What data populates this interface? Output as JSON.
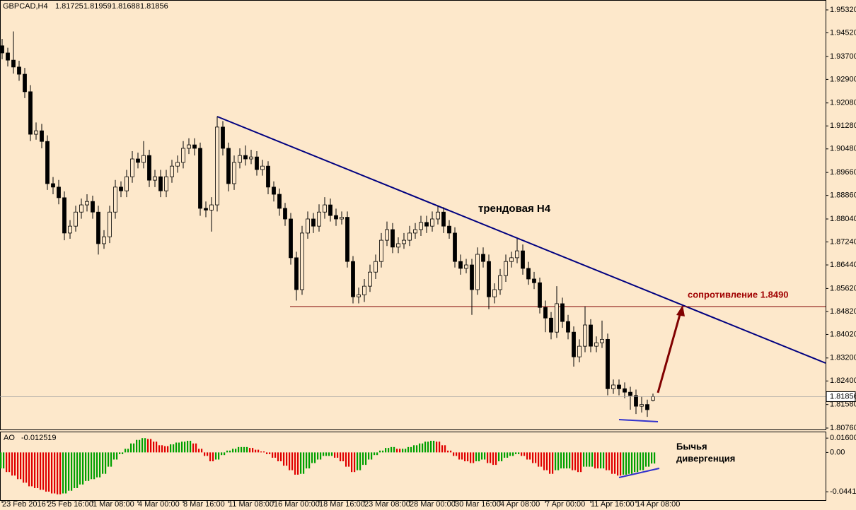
{
  "chart_data": [
    {
      "type": "candlestick",
      "symbol": "GBPCAD,H4",
      "up_color": "#fde8cb",
      "down_color": "#000000",
      "line_color": "#000000",
      "last_price_color": "#a0a0a0",
      "annotations": [
        "трендовая H4",
        "сопротивление 1.8490"
      ],
      "categories": [
        "23 Feb 2016",
        null,
        null,
        null,
        null,
        null,
        null,
        null,
        "25 Feb 16:00",
        null,
        null,
        null,
        null,
        null,
        null,
        null,
        "1 Mar 08:00",
        null,
        null,
        null,
        null,
        null,
        null,
        null,
        "4 Mar 00:00",
        null,
        null,
        null,
        null,
        null,
        null,
        null,
        "8 Mar 16:00",
        null,
        null,
        null,
        null,
        null,
        null,
        null,
        "11 Mar 08:00",
        null,
        null,
        null,
        null,
        null,
        null,
        null,
        "16 Mar 00:00",
        null,
        null,
        null,
        null,
        null,
        null,
        null,
        "18 Mar 16:00",
        null,
        null,
        null,
        null,
        null,
        null,
        null,
        "23 Mar 08:00",
        null,
        null,
        null,
        null,
        null,
        null,
        null,
        "28 Mar 00:00",
        null,
        null,
        null,
        null,
        null,
        null,
        null,
        "30 Mar 16:00",
        null,
        null,
        null,
        null,
        null,
        null,
        null,
        "4 Apr 08:00",
        null,
        null,
        null,
        null,
        null,
        null,
        null,
        "7 Apr 00:00",
        null,
        null,
        null,
        null,
        null,
        null,
        null,
        "11 Apr 16:00",
        null,
        null,
        null,
        null,
        null,
        null,
        null,
        "14 Apr 08:00",
        null,
        null,
        null
      ],
      "ohlc": [
        [
          1.9407,
          1.9431,
          1.936,
          1.9382
        ],
        [
          1.9382,
          1.94,
          1.9335,
          1.9357
        ],
        [
          1.9357,
          1.9457,
          1.931,
          1.9333
        ],
        [
          1.9333,
          1.9355,
          1.9285,
          1.9308
        ],
        [
          1.9308,
          1.933,
          1.9225,
          1.9247
        ],
        [
          1.9247,
          1.927,
          1.9075,
          1.9099
        ],
        [
          1.9099,
          1.914,
          1.908,
          1.9111
        ],
        [
          1.9111,
          1.9135,
          1.905,
          1.9074
        ],
        [
          1.9074,
          1.9095,
          1.8905,
          1.8927
        ],
        [
          1.8927,
          1.895,
          1.889,
          1.8915
        ],
        [
          1.8915,
          1.894,
          1.8855,
          1.8878
        ],
        [
          1.8878,
          1.89,
          1.873,
          1.8755
        ],
        [
          1.8755,
          1.88,
          1.8735,
          1.8779
        ],
        [
          1.8779,
          1.885,
          1.876,
          1.8828
        ],
        [
          1.8828,
          1.8875,
          1.8805,
          1.8853
        ],
        [
          1.8853,
          1.889,
          1.883,
          1.8865
        ],
        [
          1.8865,
          1.8885,
          1.8805,
          1.8828
        ],
        [
          1.8828,
          1.885,
          1.868,
          1.8718
        ],
        [
          1.8718,
          1.8765,
          1.87,
          1.8742
        ],
        [
          1.8742,
          1.885,
          1.872,
          1.8828
        ],
        [
          1.8828,
          1.894,
          1.8805,
          1.8915
        ],
        [
          1.8915,
          1.8935,
          1.888,
          1.8902
        ],
        [
          1.8902,
          1.8975,
          1.888,
          1.8951
        ],
        [
          1.8951,
          1.904,
          1.893,
          1.9013
        ],
        [
          1.9013,
          1.9035,
          1.898,
          1.9001
        ],
        [
          1.9001,
          1.9075,
          1.898,
          1.9025
        ],
        [
          1.9025,
          1.9045,
          1.8915,
          1.8939
        ],
        [
          1.8939,
          1.8975,
          1.8915,
          1.8951
        ],
        [
          1.8951,
          1.8975,
          1.888,
          1.8902
        ],
        [
          1.8902,
          1.8975,
          1.888,
          1.8951
        ],
        [
          1.8951,
          1.901,
          1.893,
          1.8988
        ],
        [
          1.8988,
          1.9025,
          1.8965,
          1.9001
        ],
        [
          1.9001,
          1.9075,
          1.898,
          1.905
        ],
        [
          1.905,
          1.9085,
          1.903,
          1.9062
        ],
        [
          1.9062,
          1.9085,
          1.9025,
          1.905
        ],
        [
          1.905,
          1.907,
          1.8815,
          1.8841
        ],
        [
          1.8841,
          1.8865,
          1.881,
          1.8835
        ],
        [
          1.8835,
          1.888,
          1.876,
          1.8853
        ],
        [
          1.8853,
          1.9161,
          1.883,
          1.9124
        ],
        [
          1.9124,
          1.9145,
          1.9025,
          1.905
        ],
        [
          1.905,
          1.907,
          1.89,
          1.8927
        ],
        [
          1.8927,
          1.9025,
          1.8905,
          1.9001
        ],
        [
          1.9001,
          1.905,
          1.898,
          1.9025
        ],
        [
          1.9025,
          1.906,
          1.899,
          1.9013
        ],
        [
          1.9013,
          1.9045,
          1.8995,
          1.902
        ],
        [
          1.902,
          1.904,
          1.8955,
          1.8976
        ],
        [
          1.8976,
          1.901,
          1.8955,
          1.8988
        ],
        [
          1.8988,
          1.9005,
          1.889,
          1.8915
        ],
        [
          1.8915,
          1.8935,
          1.8865,
          1.889
        ],
        [
          1.889,
          1.891,
          1.8815,
          1.8841
        ],
        [
          1.8841,
          1.886,
          1.878,
          1.8804
        ],
        [
          1.8804,
          1.8825,
          1.8645,
          1.8669
        ],
        [
          1.8669,
          1.869,
          1.852,
          1.8558
        ],
        [
          1.8558,
          1.878,
          1.854,
          1.8755
        ],
        [
          1.8755,
          1.883,
          1.8735,
          1.8804
        ],
        [
          1.8804,
          1.8825,
          1.8755,
          1.8779
        ],
        [
          1.8779,
          1.8855,
          1.876,
          1.8828
        ],
        [
          1.8828,
          1.888,
          1.8805,
          1.8853
        ],
        [
          1.8853,
          1.8875,
          1.8795,
          1.8816
        ],
        [
          1.8816,
          1.884,
          1.878,
          1.8804
        ],
        [
          1.8804,
          1.883,
          1.8785,
          1.881
        ],
        [
          1.881,
          1.883,
          1.8635,
          1.8656
        ],
        [
          1.8656,
          1.8675,
          1.851,
          1.8533
        ],
        [
          1.8533,
          1.8565,
          1.851,
          1.854
        ],
        [
          1.854,
          1.8595,
          1.8515,
          1.857
        ],
        [
          1.857,
          1.8645,
          1.855,
          1.8619
        ],
        [
          1.8619,
          1.868,
          1.8595,
          1.8656
        ],
        [
          1.8656,
          1.8755,
          1.8635,
          1.873
        ],
        [
          1.873,
          1.8795,
          1.871,
          1.8767
        ],
        [
          1.8767,
          1.879,
          1.8685,
          1.8706
        ],
        [
          1.8706,
          1.874,
          1.8685,
          1.8718
        ],
        [
          1.8718,
          1.8755,
          1.87,
          1.873
        ],
        [
          1.873,
          1.878,
          1.871,
          1.8755
        ],
        [
          1.8755,
          1.879,
          1.8735,
          1.8767
        ],
        [
          1.8767,
          1.8815,
          1.8745,
          1.8792
        ],
        [
          1.8792,
          1.8815,
          1.8755,
          1.8779
        ],
        [
          1.8779,
          1.883,
          1.876,
          1.8804
        ],
        [
          1.8804,
          1.885,
          1.8785,
          1.8828
        ],
        [
          1.8828,
          1.8845,
          1.8755,
          1.8779
        ],
        [
          1.8779,
          1.88,
          1.8735,
          1.8755
        ],
        [
          1.8755,
          1.8775,
          1.8635,
          1.8656
        ],
        [
          1.8656,
          1.868,
          1.861,
          1.8632
        ],
        [
          1.8632,
          1.8665,
          1.8615,
          1.8644
        ],
        [
          1.8644,
          1.8665,
          1.847,
          1.8558
        ],
        [
          1.8558,
          1.8705,
          1.854,
          1.8681
        ],
        [
          1.8681,
          1.8705,
          1.8635,
          1.8656
        ],
        [
          1.8656,
          1.868,
          1.849,
          1.8533
        ],
        [
          1.8533,
          1.858,
          1.851,
          1.8558
        ],
        [
          1.8558,
          1.863,
          1.854,
          1.8607
        ],
        [
          1.8607,
          1.868,
          1.8585,
          1.8656
        ],
        [
          1.8656,
          1.869,
          1.8635,
          1.8669
        ],
        [
          1.8669,
          1.8735,
          1.865,
          1.8693
        ],
        [
          1.8693,
          1.8715,
          1.861,
          1.8632
        ],
        [
          1.8632,
          1.8655,
          1.8575,
          1.8595
        ],
        [
          1.8595,
          1.862,
          1.856,
          1.8582
        ],
        [
          1.8582,
          1.86,
          1.8475,
          1.8496
        ],
        [
          1.8496,
          1.852,
          1.841,
          1.8459
        ],
        [
          1.8459,
          1.848,
          1.8385,
          1.841
        ],
        [
          1.841,
          1.857,
          1.839,
          1.8509
        ],
        [
          1.8509,
          1.853,
          1.8425,
          1.8447
        ],
        [
          1.8447,
          1.847,
          1.8385,
          1.841
        ],
        [
          1.841,
          1.843,
          1.829,
          1.8324
        ],
        [
          1.8324,
          1.8385,
          1.8305,
          1.8361
        ],
        [
          1.8361,
          1.85,
          1.834,
          1.8435
        ],
        [
          1.8435,
          1.8455,
          1.834,
          1.8361
        ],
        [
          1.8361,
          1.8395,
          1.834,
          1.8373
        ],
        [
          1.8373,
          1.845,
          1.8355,
          1.8385
        ],
        [
          1.8385,
          1.8405,
          1.819,
          1.8213
        ],
        [
          1.8213,
          1.8245,
          1.8195,
          1.8226
        ],
        [
          1.8226,
          1.8245,
          1.819,
          1.8213
        ],
        [
          1.8213,
          1.8235,
          1.818,
          1.8201
        ],
        [
          1.8201,
          1.822,
          1.814,
          1.8189
        ],
        [
          1.8189,
          1.821,
          1.8125,
          1.8152
        ],
        [
          1.8152,
          1.8185,
          1.813,
          1.8158
        ],
        [
          1.8158,
          1.8175,
          1.8115,
          1.814
        ],
        [
          1.81725,
          1.81959,
          1.81688,
          1.81856
        ]
      ],
      "ylim": [
        1.80711,
        1.95664
      ],
      "yticks": [
        {
          "value": 1.9532,
          "label": "1.95320"
        },
        {
          "value": 1.9452,
          "label": "1.94520"
        },
        {
          "value": 1.937,
          "label": "1.93700"
        },
        {
          "value": 1.929,
          "label": "1.92900"
        },
        {
          "value": 1.9208,
          "label": "1.92080"
        },
        {
          "value": 1.9128,
          "label": "1.91280"
        },
        {
          "value": 1.9048,
          "label": "1.90480"
        },
        {
          "value": 1.8966,
          "label": "1.89660"
        },
        {
          "value": 1.8886,
          "label": "1.88860"
        },
        {
          "value": 1.8804,
          "label": "1.88040"
        },
        {
          "value": 1.8724,
          "label": "1.87240"
        },
        {
          "value": 1.8644,
          "label": "1.86440"
        },
        {
          "value": 1.8562,
          "label": "1.85620"
        },
        {
          "value": 1.8482,
          "label": "1.84820"
        },
        {
          "value": 1.8402,
          "label": "1.84020"
        },
        {
          "value": 1.832,
          "label": "1.83200"
        },
        {
          "value": 1.824,
          "label": "1.82400"
        },
        {
          "value": 1.8158,
          "label": "1.81580"
        },
        {
          "value": 1.8076,
          "label": "1.80760"
        }
      ]
    },
    {
      "type": "histogram",
      "name": "AO",
      "up_color": "#00a000",
      "down_color": "#e00000",
      "annotations": [
        "Бычья",
        "дивергенция"
      ],
      "values": [
        -0.018,
        -0.022,
        -0.026,
        -0.03,
        -0.034,
        -0.038,
        -0.04,
        -0.042,
        -0.044,
        -0.046,
        -0.047,
        -0.046,
        -0.043,
        -0.04,
        -0.036,
        -0.032,
        -0.03,
        -0.028,
        -0.024,
        -0.016,
        -0.008,
        -0.002,
        0.004,
        0.01,
        0.014,
        0.016,
        0.015,
        0.012,
        0.008,
        0.007,
        0.009,
        0.011,
        0.012,
        0.013,
        0.01,
        0.004,
        -0.004,
        -0.01,
        -0.008,
        -0.003,
        0.002,
        0.004,
        0.006,
        0.006,
        0.005,
        0.003,
        0.001,
        -0.002,
        -0.006,
        -0.01,
        -0.015,
        -0.02,
        -0.025,
        -0.024,
        -0.018,
        -0.012,
        -0.008,
        -0.004,
        -0.004,
        -0.006,
        -0.01,
        -0.016,
        -0.022,
        -0.02,
        -0.014,
        -0.008,
        -0.003,
        0.002,
        0.005,
        0.006,
        0.004,
        0.004,
        0.006,
        0.008,
        0.01,
        0.012,
        0.013,
        0.012,
        0.008,
        0.002,
        -0.004,
        -0.008,
        -0.01,
        -0.012,
        -0.01,
        -0.008,
        -0.012,
        -0.014,
        -0.01,
        -0.006,
        -0.004,
        -0.002,
        -0.004,
        -0.008,
        -0.012,
        -0.016,
        -0.02,
        -0.024,
        -0.02,
        -0.018,
        -0.018,
        -0.02,
        -0.022,
        -0.016,
        -0.016,
        -0.018,
        -0.018,
        -0.02,
        -0.024,
        -0.026,
        -0.025,
        -0.024,
        -0.022,
        -0.02,
        -0.016,
        -0.012519
      ],
      "ylim": [
        -0.0535,
        0.0225
      ],
      "yticks": [
        0.016006,
        {
          "value": 0,
          "label": "0.00"
        },
        -0.044141
      ]
    }
  ]
}
